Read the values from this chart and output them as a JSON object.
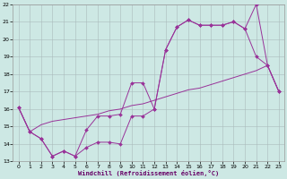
{
  "xlabel": "Windchill (Refroidissement éolien,°C)",
  "background_color": "#cde8e4",
  "grid_color": "#aabbbb",
  "line_color": "#993399",
  "xlim": [
    -0.5,
    23.5
  ],
  "ylim": [
    13,
    22
  ],
  "xticks": [
    0,
    1,
    2,
    3,
    4,
    5,
    6,
    7,
    8,
    9,
    10,
    11,
    12,
    13,
    14,
    15,
    16,
    17,
    18,
    19,
    20,
    21,
    22,
    23
  ],
  "yticks": [
    13,
    14,
    15,
    16,
    17,
    18,
    19,
    20,
    21,
    22
  ],
  "line1_x": [
    0,
    1,
    2,
    3,
    4,
    5,
    6,
    7,
    8,
    9,
    10,
    11,
    12,
    13,
    14,
    15,
    16,
    17,
    18,
    19,
    20,
    21,
    22,
    23
  ],
  "line1_y": [
    16.1,
    14.7,
    14.3,
    13.3,
    13.6,
    13.3,
    13.8,
    14.1,
    14.1,
    14.0,
    15.6,
    15.6,
    16.0,
    19.4,
    20.7,
    21.1,
    20.8,
    20.8,
    20.8,
    21.0,
    20.6,
    19.0,
    18.5,
    17.0
  ],
  "line2_x": [
    0,
    1,
    2,
    3,
    4,
    5,
    6,
    7,
    8,
    9,
    10,
    11,
    12,
    13,
    14,
    15,
    16,
    17,
    18,
    19,
    20,
    21,
    22,
    23
  ],
  "line2_y": [
    16.1,
    14.7,
    14.3,
    13.3,
    13.6,
    13.3,
    14.8,
    15.6,
    15.6,
    15.7,
    17.5,
    17.5,
    16.0,
    19.4,
    20.7,
    21.1,
    20.8,
    20.8,
    20.8,
    21.0,
    20.6,
    22.0,
    18.5,
    17.0
  ],
  "line3_x": [
    0,
    1,
    2,
    3,
    4,
    5,
    6,
    7,
    8,
    9,
    10,
    11,
    12,
    13,
    14,
    15,
    16,
    17,
    18,
    19,
    20,
    21,
    22,
    23
  ],
  "line3_y": [
    16.1,
    14.7,
    15.1,
    15.3,
    15.4,
    15.5,
    15.6,
    15.7,
    15.9,
    16.0,
    16.2,
    16.3,
    16.5,
    16.7,
    16.9,
    17.1,
    17.2,
    17.4,
    17.6,
    17.8,
    18.0,
    18.2,
    18.5,
    17.0
  ]
}
